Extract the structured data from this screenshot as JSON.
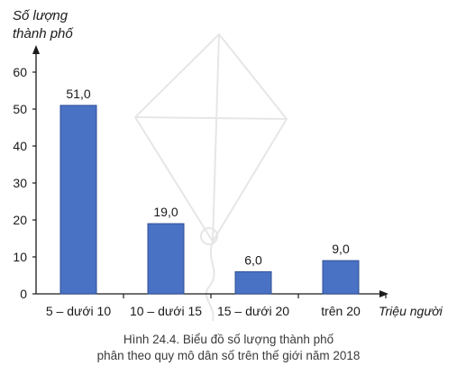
{
  "chart_data": {
    "type": "bar",
    "ylabel": "Số lượng thành phố",
    "ylabel_lines": [
      "Số lượng",
      "thành phố"
    ],
    "xlabel": "Triệu người",
    "categories": [
      "5 – dưới 10",
      "10 – dưới 15",
      "15 – dưới 20",
      "trên 20"
    ],
    "values": [
      51,
      19,
      6,
      9
    ],
    "value_labels": [
      "51,0",
      "19,0",
      "6,0",
      "9,0"
    ],
    "ylim": [
      0,
      60
    ],
    "yticks": [
      0,
      10,
      20,
      30,
      40,
      50,
      60
    ],
    "grid": false,
    "legend": "none",
    "bar_color": "#4a72c4",
    "bar_edge_color": "#2f4f95"
  },
  "caption": {
    "line1": "Hình 24.4. Biểu đồ số lượng thành phố",
    "line2": "phân theo quy mô dân số trên thế giới năm 2018"
  }
}
